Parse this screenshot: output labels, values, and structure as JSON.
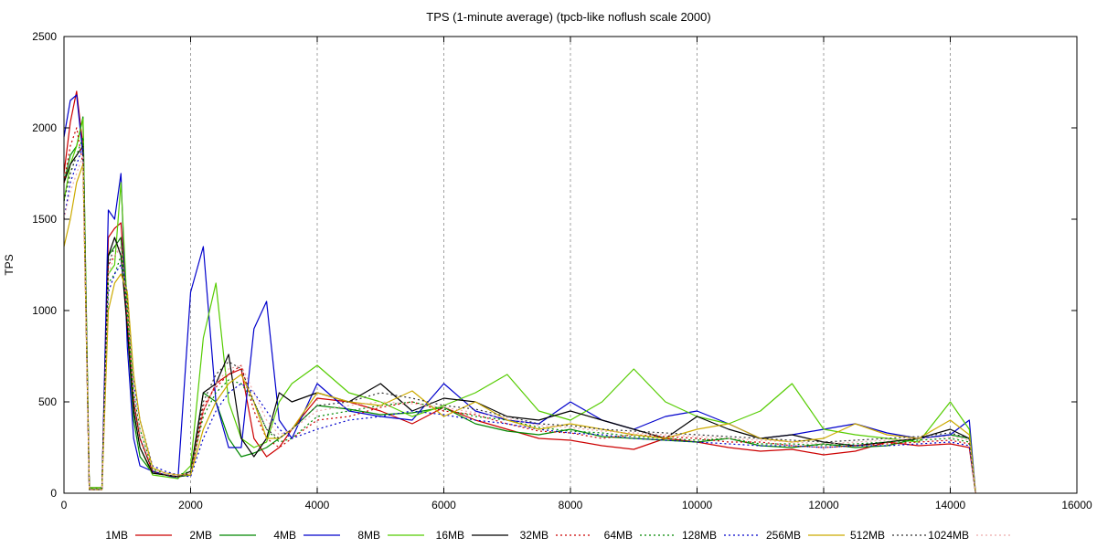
{
  "chart_data": {
    "type": "line",
    "title": "TPS (1-minute average) (tpcb-like noflush scale 2000)",
    "xlabel": "",
    "ylabel": "TPS",
    "xlim": [
      0,
      16000
    ],
    "ylim": [
      0,
      2500
    ],
    "xticks": [
      0,
      2000,
      4000,
      6000,
      8000,
      10000,
      12000,
      14000,
      16000
    ],
    "yticks": [
      0,
      500,
      1000,
      1500,
      2000,
      2500
    ],
    "grid": "vertical dashed at x ticks",
    "legend_position": "bottom",
    "x": [
      0,
      100,
      200,
      300,
      400,
      500,
      600,
      700,
      800,
      900,
      1000,
      1100,
      1200,
      1400,
      1600,
      1800,
      2000,
      2200,
      2400,
      2600,
      2800,
      3000,
      3200,
      3400,
      3600,
      4000,
      4500,
      5000,
      5500,
      6000,
      6500,
      7000,
      7500,
      8000,
      8500,
      9000,
      9500,
      10000,
      10500,
      11000,
      11500,
      12000,
      12500,
      13000,
      13500,
      14000,
      14300,
      14400
    ],
    "series": [
      {
        "name": "1MB",
        "color": "#cc0000",
        "dash": "solid",
        "values": [
          1750,
          2030,
          2200,
          1900,
          30,
          30,
          30,
          1400,
          1450,
          1480,
          1000,
          500,
          300,
          120,
          100,
          90,
          100,
          450,
          600,
          650,
          680,
          300,
          200,
          250,
          350,
          520,
          500,
          450,
          380,
          470,
          400,
          350,
          300,
          290,
          260,
          240,
          300,
          280,
          250,
          230,
          240,
          210,
          230,
          280,
          260,
          270,
          250,
          0
        ]
      },
      {
        "name": "2MB",
        "color": "#008800",
        "dash": "solid",
        "values": [
          1700,
          1850,
          1900,
          2060,
          30,
          30,
          30,
          1300,
          1350,
          1400,
          900,
          400,
          200,
          110,
          100,
          90,
          100,
          550,
          500,
          300,
          200,
          220,
          250,
          300,
          350,
          480,
          460,
          430,
          440,
          470,
          380,
          340,
          320,
          350,
          310,
          300,
          290,
          280,
          300,
          260,
          250,
          270,
          250,
          260,
          300,
          320,
          300,
          0
        ]
      },
      {
        "name": "4MB",
        "color": "#0000cc",
        "dash": "solid",
        "values": [
          1950,
          2150,
          2180,
          1850,
          20,
          20,
          20,
          1550,
          1500,
          1750,
          800,
          300,
          150,
          120,
          100,
          80,
          1100,
          1350,
          500,
          250,
          250,
          900,
          1050,
          400,
          300,
          600,
          450,
          420,
          400,
          600,
          450,
          400,
          380,
          500,
          400,
          350,
          420,
          450,
          380,
          300,
          320,
          350,
          380,
          330,
          300,
          320,
          400,
          0
        ]
      },
      {
        "name": "8MB",
        "color": "#55cc00",
        "dash": "solid",
        "values": [
          1600,
          1800,
          1900,
          2050,
          30,
          30,
          30,
          1200,
          1250,
          1700,
          1000,
          450,
          250,
          100,
          90,
          80,
          150,
          850,
          1150,
          500,
          300,
          250,
          280,
          500,
          600,
          700,
          550,
          500,
          420,
          480,
          550,
          650,
          450,
          400,
          500,
          680,
          500,
          420,
          380,
          450,
          600,
          350,
          320,
          300,
          280,
          500,
          350,
          0
        ]
      },
      {
        "name": "16MB",
        "color": "#000000",
        "dash": "solid",
        "values": [
          1700,
          1800,
          1850,
          1900,
          20,
          20,
          20,
          1300,
          1400,
          1300,
          900,
          450,
          250,
          110,
          100,
          90,
          120,
          550,
          600,
          760,
          300,
          200,
          300,
          550,
          500,
          550,
          500,
          600,
          450,
          520,
          500,
          420,
          400,
          450,
          400,
          350,
          300,
          420,
          350,
          300,
          320,
          280,
          260,
          280,
          300,
          350,
          300,
          0
        ]
      },
      {
        "name": "32MB",
        "color": "#cc0000",
        "dash": "dotted",
        "values": [
          1700,
          1900,
          2000,
          1800,
          20,
          20,
          20,
          1250,
          1300,
          1350,
          950,
          500,
          300,
          120,
          100,
          90,
          110,
          480,
          580,
          650,
          700,
          450,
          300,
          250,
          300,
          400,
          420,
          470,
          500,
          450,
          430,
          380,
          340,
          330,
          300,
          320,
          310,
          300,
          280,
          280,
          260,
          250,
          260,
          270,
          280,
          290,
          270,
          0
        ]
      },
      {
        "name": "64MB",
        "color": "#008800",
        "dash": "dotted",
        "values": [
          1600,
          1750,
          1850,
          1950,
          25,
          25,
          25,
          1150,
          1200,
          1300,
          1000,
          550,
          350,
          130,
          110,
          100,
          120,
          420,
          550,
          620,
          600,
          500,
          350,
          280,
          300,
          420,
          450,
          480,
          500,
          460,
          420,
          400,
          360,
          340,
          330,
          310,
          300,
          290,
          300,
          270,
          270,
          260,
          270,
          280,
          290,
          300,
          280,
          0
        ]
      },
      {
        "name": "128MB",
        "color": "#0000cc",
        "dash": "dotted",
        "values": [
          1500,
          1700,
          1800,
          1900,
          20,
          20,
          20,
          1100,
          1200,
          1250,
          1100,
          600,
          400,
          150,
          120,
          100,
          90,
          300,
          450,
          550,
          600,
          550,
          450,
          350,
          300,
          350,
          400,
          420,
          450,
          430,
          400,
          380,
          350,
          330,
          320,
          300,
          290,
          280,
          270,
          260,
          260,
          250,
          260,
          260,
          270,
          280,
          260,
          0
        ]
      },
      {
        "name": "256MB",
        "color": "#ccaa00",
        "dash": "solid",
        "values": [
          1350,
          1500,
          1700,
          1800,
          20,
          20,
          20,
          1000,
          1150,
          1200,
          1100,
          650,
          400,
          140,
          110,
          100,
          100,
          350,
          500,
          600,
          650,
          500,
          300,
          300,
          350,
          550,
          500,
          480,
          560,
          420,
          500,
          400,
          350,
          380,
          350,
          320,
          300,
          350,
          380,
          300,
          280,
          300,
          380,
          320,
          300,
          400,
          320,
          0
        ]
      },
      {
        "name": "512MB",
        "color": "#333333",
        "dash": "dotted",
        "values": [
          1600,
          1750,
          1850,
          1900,
          20,
          20,
          20,
          1250,
          1350,
          1400,
          1050,
          500,
          300,
          120,
          100,
          90,
          110,
          500,
          650,
          720,
          680,
          500,
          350,
          300,
          350,
          480,
          500,
          550,
          520,
          480,
          460,
          420,
          380,
          370,
          350,
          340,
          330,
          320,
          310,
          300,
          290,
          280,
          290,
          300,
          310,
          330,
          300,
          0
        ]
      },
      {
        "name": "1024MB",
        "color": "#eeaaaa",
        "dash": "dotted",
        "values": [
          1500,
          1650,
          1750,
          1850,
          20,
          20,
          20,
          1200,
          1300,
          1350,
          1000,
          550,
          350,
          130,
          110,
          100,
          110,
          450,
          600,
          680,
          700,
          550,
          400,
          320,
          350,
          450,
          480,
          500,
          490,
          470,
          440,
          410,
          370,
          360,
          340,
          330,
          320,
          310,
          300,
          290,
          280,
          270,
          280,
          290,
          300,
          310,
          290,
          0
        ]
      }
    ]
  }
}
